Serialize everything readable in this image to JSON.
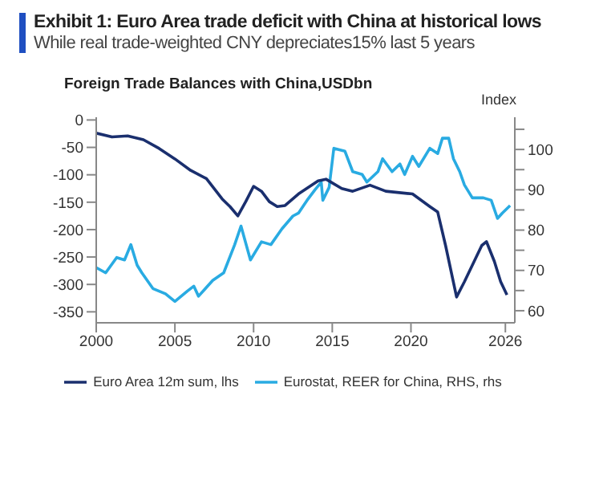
{
  "chart_data": {
    "type": "line",
    "title": "Exhibit 1: Euro Area trade deficit with China at historical lows",
    "subtitle": "While real trade-weighted CNY depreciates15% last 5 years",
    "ylabel": "Foreign Trade Balances with China,USDbn",
    "y2label": "Index",
    "xlim": [
      2000,
      2026.6
    ],
    "xticks": [
      2000,
      2005,
      2010,
      2015,
      2020,
      2026
    ],
    "ylim": [
      -370,
      5
    ],
    "yticks": [
      0,
      -50,
      -100,
      -150,
      -200,
      -250,
      -300,
      -350
    ],
    "y2lim": [
      57,
      108
    ],
    "y2ticks": [
      {
        "value": 60,
        "label": "60"
      },
      {
        "value": 65,
        "label": null
      },
      {
        "value": 70,
        "label": "70"
      },
      {
        "value": 75,
        "label": null
      },
      {
        "value": 80,
        "label": "80"
      },
      {
        "value": 85,
        "label": null
      },
      {
        "value": 90,
        "label": "90"
      },
      {
        "value": 95,
        "label": null
      },
      {
        "value": 100,
        "label": "100"
      },
      {
        "value": 105,
        "label": null
      }
    ],
    "legend": "bottom",
    "marker": "none",
    "series": [
      {
        "name": "Eurostat, REER for China, RHS, rhs",
        "color": "#29abe2",
        "axis": "y2",
        "x": [
          2000,
          2000.6,
          2001.3,
          2001.8,
          2002.2,
          2002.6,
          2002.9,
          2003.6,
          2004.4,
          2005,
          2005.8,
          2006.2,
          2006.5,
          2007.4,
          2008.1,
          2008.8,
          2009.2,
          2009.8,
          2010.5,
          2011.1,
          2011.8,
          2012.5,
          2012.85,
          2013.4,
          2013.9,
          2014.3,
          2014.4,
          2014.8,
          2015.1,
          2015.8,
          2016.3,
          2016.9,
          2017.2,
          2017.9,
          2018.2,
          2018.8,
          2019.3,
          2019.6,
          2020.1,
          2020.5,
          2021.2,
          2021.7,
          2022,
          2022.4,
          2022.7,
          2023.1,
          2023.4,
          2023.9,
          2024.6,
          2025.1,
          2025.5,
          2025.8,
          2026.3
        ],
        "values": [
          70.7,
          69.4,
          73.2,
          72.6,
          76.4,
          71.3,
          69.4,
          65.5,
          64.2,
          62.3,
          64.9,
          66.1,
          63.6,
          67.5,
          69.4,
          76.4,
          81,
          72.6,
          77.1,
          76.4,
          80.3,
          83.5,
          84.2,
          87.4,
          90,
          91.9,
          87.4,
          90.6,
          100.3,
          99.6,
          94.5,
          93.8,
          91.9,
          94.5,
          97.7,
          94.5,
          96.4,
          93.8,
          98.3,
          95.8,
          100.3,
          99,
          102.8,
          102.8,
          97.7,
          94.5,
          91.2,
          88,
          88,
          87.4,
          82.9,
          84.2,
          86.1
        ]
      },
      {
        "name": "Euro Area 12m sum, lhs",
        "color": "#1a2f6e",
        "x": [
          2000,
          2001,
          2002,
          2003,
          2004,
          2005,
          2006,
          2007,
          2008,
          2008.5,
          2009,
          2009.5,
          2010,
          2010.5,
          2011,
          2011.5,
          2012,
          2012.85,
          2014.1,
          2014.6,
          2015.6,
          2016.3,
          2017.4,
          2018.4,
          2020.1,
          2021.2,
          2021.7,
          2022.2,
          2022.9,
          2023.4,
          2024.5,
          2024.8,
          2025.3,
          2025.7,
          2026.1
        ],
        "values": [
          -24,
          -31,
          -29,
          -36,
          -52,
          -71,
          -92,
          -107,
          -144,
          -158,
          -175,
          -149,
          -121,
          -130,
          -149,
          -158,
          -156,
          -135,
          -111,
          -108,
          -125,
          -130,
          -119,
          -130,
          -135,
          -158,
          -168,
          -229,
          -323,
          -295,
          -229,
          -222,
          -258,
          -295,
          -319
        ]
      }
    ]
  }
}
